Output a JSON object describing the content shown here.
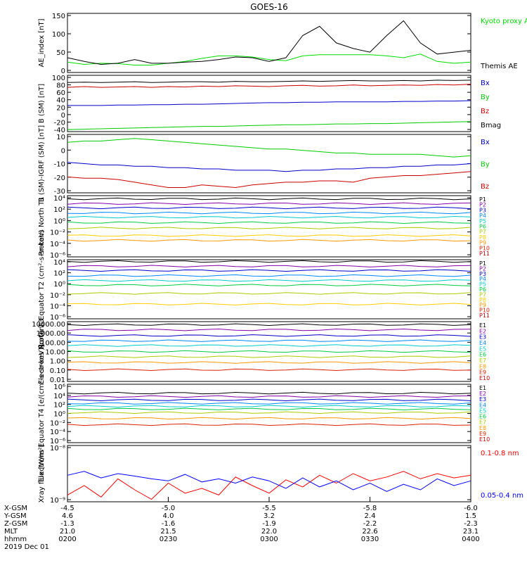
{
  "title": "GOES-16",
  "chart_data": [
    {
      "type": "line",
      "ylabel": "AE_index [nT]",
      "yticks": [
        "150",
        "100",
        "50",
        "0"
      ],
      "ylim": [
        0,
        160
      ],
      "x": [
        "0200",
        "0205",
        "0210",
        "0215",
        "0220",
        "0225",
        "0230",
        "0235",
        "0240",
        "0245",
        "0250",
        "0255",
        "0300",
        "0305",
        "0310",
        "0315",
        "0320",
        "0325",
        "0330",
        "0335",
        "0340",
        "0345",
        "0350",
        "0355",
        "0400"
      ],
      "series": [
        {
          "name": "Kyoto proxy AE",
          "color": "#00dd00",
          "values": [
            28,
            22,
            25,
            24,
            20,
            20,
            25,
            30,
            38,
            45,
            45,
            42,
            35,
            32,
            45,
            48,
            48,
            48,
            48,
            45,
            40,
            50,
            30,
            25,
            28
          ]
        },
        {
          "name": "Themis AE",
          "color": "#000000",
          "values": [
            40,
            30,
            22,
            25,
            35,
            25,
            25,
            28,
            30,
            35,
            42,
            40,
            30,
            40,
            100,
            125,
            80,
            65,
            55,
            100,
            140,
            80,
            50,
            55,
            60
          ]
        }
      ]
    },
    {
      "type": "line",
      "ylabel": "B (SM) [nT]",
      "yticks": [
        "100",
        "80",
        "60",
        "40",
        "20",
        "0",
        "-20",
        "-40"
      ],
      "ylim": [
        -40,
        100
      ],
      "series": [
        {
          "name": "Bx",
          "color": "#0000cc",
          "values": [
            25,
            25,
            25,
            26,
            26,
            27,
            27,
            28,
            28,
            29,
            30,
            31,
            32,
            32,
            33,
            33,
            34,
            34,
            34,
            34,
            35,
            35,
            36,
            36,
            37
          ]
        },
        {
          "name": "By",
          "color": "#00cc00",
          "values": [
            -35,
            -34,
            -33,
            -32,
            -31,
            -30,
            -29,
            -28,
            -27,
            -27,
            -26,
            -25,
            -24,
            -23,
            -23,
            -22,
            -21,
            -21,
            -20,
            -20,
            -19,
            -18,
            -17,
            -16,
            -15
          ]
        },
        {
          "name": "Bz",
          "color": "#cc0000",
          "values": [
            70,
            72,
            70,
            71,
            72,
            70,
            72,
            71,
            73,
            72,
            74,
            73,
            72,
            74,
            75,
            73,
            74,
            76,
            74,
            75,
            76,
            75,
            77,
            76,
            78
          ]
        },
        {
          "name": "Bmag",
          "color": "#000000",
          "values": [
            82,
            83,
            82,
            83,
            84,
            82,
            83,
            84,
            84,
            83,
            85,
            84,
            84,
            85,
            86,
            85,
            86,
            87,
            86,
            86,
            87,
            86,
            88,
            87,
            88
          ]
        }
      ]
    },
    {
      "type": "line",
      "ylabel": "B (SM)-IGRF (SM) [nT]",
      "yticks": [
        "10",
        "0",
        "-10",
        "-20",
        "-30"
      ],
      "ylim": [
        -32,
        12
      ],
      "series": [
        {
          "name": "Bx",
          "color": "#0000cc",
          "values": [
            -9,
            -10,
            -11,
            -11,
            -12,
            -12,
            -13,
            -13,
            -14,
            -14,
            -15,
            -15,
            -15,
            -16,
            -15,
            -15,
            -14,
            -14,
            -13,
            -13,
            -12,
            -12,
            -11,
            -11,
            -10
          ]
        },
        {
          "name": "By",
          "color": "#00cc00",
          "values": [
            6,
            7,
            7,
            8,
            9,
            8,
            7,
            6,
            5,
            4,
            3,
            2,
            1,
            1,
            0,
            -1,
            -2,
            -2,
            -3,
            -3,
            -3,
            -3,
            -4,
            -5,
            -4
          ]
        },
        {
          "name": "Bz",
          "color": "#cc0000",
          "values": [
            -20,
            -21,
            -21,
            -22,
            -24,
            -26,
            -28,
            -28,
            -26,
            -27,
            -28,
            -26,
            -25,
            -24,
            -24,
            -23,
            -23,
            -24,
            -21,
            -20,
            -19,
            -19,
            -18,
            -17,
            -16
          ]
        }
      ]
    },
    {
      "type": "line",
      "ylabel": "Protons North T1",
      "log": true,
      "yticks": [
        "10⁴",
        "10²",
        "10⁰",
        "10⁻²",
        "10⁻⁴",
        "10⁻⁶"
      ],
      "ylim": [
        1e-06,
        10000
      ],
      "series": [
        {
          "name": "P1",
          "color": "#000000",
          "value": 3000
        },
        {
          "name": "P2",
          "color": "#8800aa",
          "value": 500
        },
        {
          "name": "P3",
          "color": "#0000cc",
          "value": 100
        },
        {
          "name": "P4",
          "color": "#0088ff",
          "value": 15
        },
        {
          "name": "P5",
          "color": "#00cccc",
          "value": 3
        },
        {
          "name": "P6",
          "color": "#00cc44",
          "value": 0.4
        },
        {
          "name": "P7",
          "color": "#aacc00",
          "value": 0.05
        },
        {
          "name": "P8",
          "color": "#ffcc00",
          "value": 0.003
        },
        {
          "name": "P9",
          "color": "#ff9900",
          "value": 0.0005
        },
        {
          "name": "P10",
          "color": "#dd2200",
          "value": null
        },
        {
          "name": "P11",
          "color": "#cc0000",
          "value": null
        }
      ]
    },
    {
      "type": "line",
      "ylabel": "Protons Equator T2 (cm²-s-sr-keV)",
      "log": true,
      "yticks": [
        "10⁴",
        "10²",
        "10⁰",
        "10⁻²",
        "10⁻⁴",
        "10⁻⁶"
      ],
      "ylim": [
        1e-06,
        10000
      ],
      "series": [
        {
          "name": "P1",
          "color": "#000000",
          "value": 5000
        },
        {
          "name": "P2",
          "color": "#8800aa",
          "value": 800
        },
        {
          "name": "P3",
          "color": "#0000cc",
          "value": 150
        },
        {
          "name": "P4",
          "color": "#0088ff",
          "value": 20
        },
        {
          "name": "P5",
          "color": "#00cccc",
          "value": 3
        },
        {
          "name": "P6",
          "color": "#00cc44",
          "value": 0.5
        },
        {
          "name": "P7",
          "color": "#aacc00",
          "value": 0.02
        },
        {
          "name": "P8",
          "color": "#ffcc00",
          "value": 0.0003
        },
        {
          "name": "P9",
          "color": "#ff9900",
          "value": null
        },
        {
          "name": "P10",
          "color": "#dd2200",
          "value": null
        },
        {
          "name": "P11",
          "color": "#cc0000",
          "value": null
        }
      ]
    },
    {
      "type": "line",
      "ylabel": "Electrons North T3",
      "log": true,
      "yticks": [
        "10000.00",
        "1000.00",
        "100.00",
        "10.00",
        "1.00",
        "0.10",
        "0.01"
      ],
      "ylim": [
        0.01,
        10000
      ],
      "series": [
        {
          "name": "E1",
          "color": "#000000",
          "value": 5000
        },
        {
          "name": "E2",
          "color": "#8800aa",
          "value": 1500
        },
        {
          "name": "E3",
          "color": "#0000cc",
          "value": 400
        },
        {
          "name": "E4",
          "color": "#0088ff",
          "value": 120
        },
        {
          "name": "E5",
          "color": "#00cccc",
          "value": 40
        },
        {
          "name": "E6",
          "color": "#00cc44",
          "value": 10
        },
        {
          "name": "E7",
          "color": "#aacc00",
          "value": 3
        },
        {
          "name": "E8",
          "color": "#ff9900",
          "value": 0.8
        },
        {
          "name": "E9",
          "color": "#dd2200",
          "value": 0.15
        },
        {
          "name": "E10",
          "color": "#cc0000",
          "value": null
        }
      ]
    },
    {
      "type": "line",
      "ylabel": "Electrons Equator T4 [e/(cm²-s-sr-keV)]",
      "log": true,
      "yticks": [
        "10⁶",
        "10⁴",
        "10²",
        "10⁰",
        "10⁻²",
        "10⁻⁴",
        "10⁻⁶"
      ],
      "ylim": [
        1e-06,
        1000000
      ],
      "series": [
        {
          "name": "E1",
          "color": "#000000",
          "value": 15000
        },
        {
          "name": "E2",
          "color": "#8800aa",
          "value": 3000
        },
        {
          "name": "E3",
          "color": "#0000cc",
          "value": 600
        },
        {
          "name": "E4",
          "color": "#0088ff",
          "value": 120
        },
        {
          "name": "E5",
          "color": "#00cccc",
          "value": 30
        },
        {
          "name": "E6",
          "color": "#00cc44",
          "value": 8
        },
        {
          "name": "E7",
          "color": "#aacc00",
          "value": 1.5
        },
        {
          "name": "E8",
          "color": "#ff9900",
          "value": 0.1
        },
        {
          "name": "E9",
          "color": "#dd2200",
          "value": 0.005
        },
        {
          "name": "E10",
          "color": "#cc0000",
          "value": null
        }
      ]
    },
    {
      "type": "line",
      "ylabel": "Xray flux [W/m²]",
      "log": true,
      "yticks": [
        "10⁻⁸",
        "10⁻⁹"
      ],
      "ylim": [
        9e-10,
        1e-08
      ],
      "series": [
        {
          "name": "0.1-0.8 nm",
          "color": "#ff0000",
          "values": [
            1.2e-09,
            1.8e-09,
            1.1e-09,
            2.4e-09,
            1.5e-09,
            1e-09,
            2e-09,
            1.3e-09,
            1.6e-09,
            1.2e-09,
            2.6e-09,
            1.8e-09,
            1.3e-09,
            2.3e-09,
            1.7e-09,
            2.8e-09,
            2e-09,
            3e-09,
            2.2e-09,
            2.6e-09,
            3.3e-09,
            2.4e-09,
            3e-09,
            2.5e-09,
            2.8e-09
          ]
        },
        {
          "name": "0.05-0.4 nm",
          "color": "#0000ff",
          "values": [
            2.8e-09,
            3.3e-09,
            2.5e-09,
            3e-09,
            2.7e-09,
            2.4e-09,
            2.2e-09,
            2.9e-09,
            2.1e-09,
            2.4e-09,
            2e-09,
            2.6e-09,
            2.2e-09,
            1.6e-09,
            2.5e-09,
            1.7e-09,
            2.2e-09,
            1.5e-09,
            2e-09,
            1.4e-09,
            1.9e-09,
            1.5e-09,
            2.4e-09,
            1.8e-09,
            2.2e-09
          ]
        }
      ]
    }
  ],
  "xaxis": {
    "row_labels": [
      "X-GSM",
      "Y-GSM",
      "Z-GSM",
      "MLT",
      "hhmm",
      "2019 Dec 01"
    ],
    "columns": [
      {
        "x_gsm": "-4.5",
        "y_gsm": "4.6",
        "z_gsm": "-1.3",
        "mlt": "21.0",
        "hhmm": "0200"
      },
      {
        "x_gsm": "-5.0",
        "y_gsm": "4.0",
        "z_gsm": "-1.6",
        "mlt": "21.5",
        "hhmm": "0230"
      },
      {
        "x_gsm": "-5.5",
        "y_gsm": "3.2",
        "z_gsm": "-1.9",
        "mlt": "22.0",
        "hhmm": "0300"
      },
      {
        "x_gsm": "-5.8",
        "y_gsm": "2.4",
        "z_gsm": "-2.2",
        "mlt": "22.6",
        "hhmm": "0330"
      },
      {
        "x_gsm": "-6.0",
        "y_gsm": "1.5",
        "z_gsm": "-2.3",
        "mlt": "23.1",
        "hhmm": "0400"
      }
    ]
  }
}
